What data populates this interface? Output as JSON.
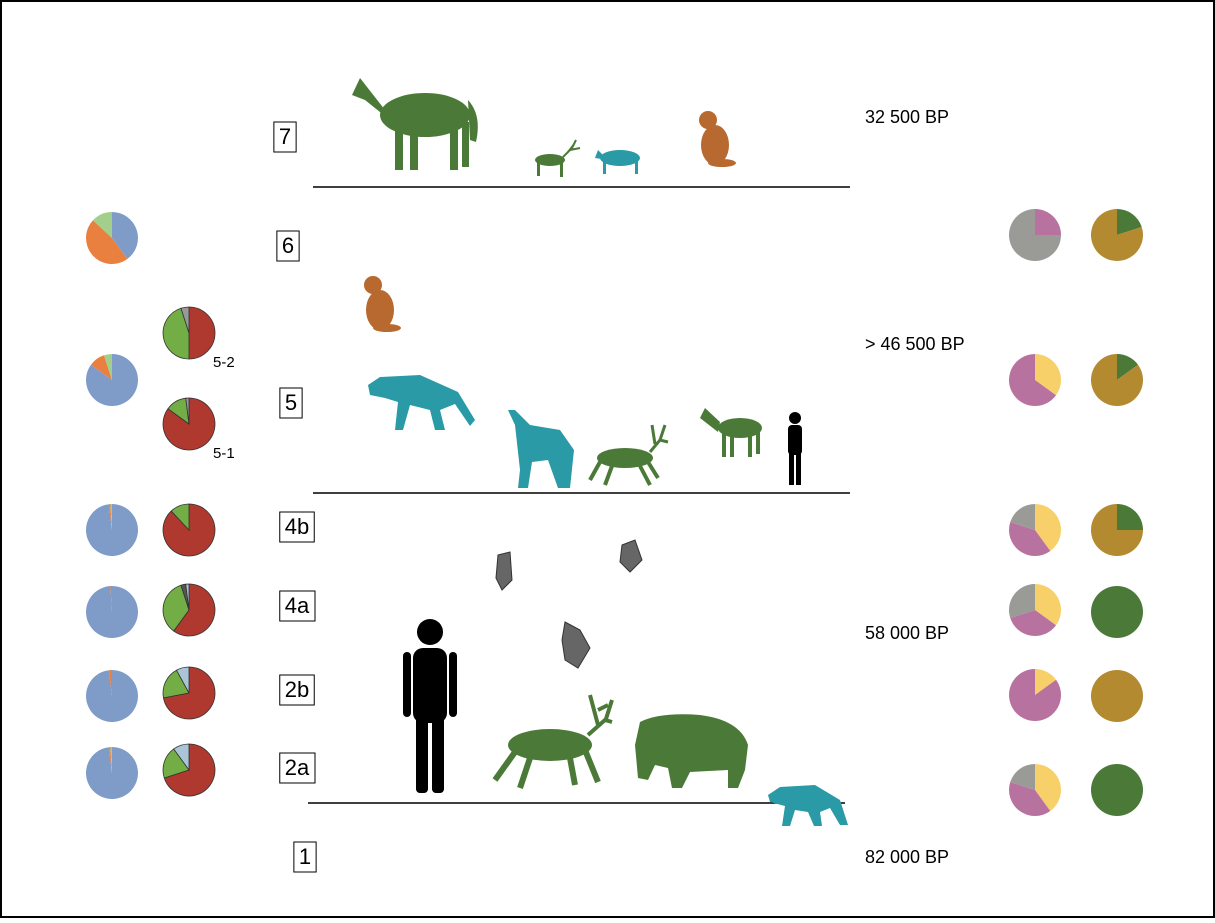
{
  "layers": [
    "7",
    "6",
    "5",
    "4b",
    "4a",
    "2b",
    "2a",
    "1"
  ],
  "dates": [
    "32 500 BP",
    "> 46 500 BP",
    "58 000 BP",
    "82 000 BP"
  ],
  "pies": [
    {
      "slices": [
        {
          "color": "#7f9cc8",
          "value": 40
        },
        {
          "color": "#e9803f",
          "value": 47
        },
        {
          "color": "#a3cf8c",
          "value": 13
        }
      ]
    },
    {
      "slices": [
        {
          "color": "#7f9cc8",
          "value": 85
        },
        {
          "color": "#e9803f",
          "value": 10
        },
        {
          "color": "#a3cf8c",
          "value": 5
        }
      ]
    },
    {
      "slices": [
        {
          "color": "#7f9cc8",
          "value": 98
        },
        {
          "color": "#e9803f",
          "value": 1
        },
        {
          "color": "#a3cf8c",
          "value": 1
        }
      ]
    },
    {
      "slices": [
        {
          "color": "#7f9cc8",
          "value": 99
        },
        {
          "color": "#e9803f",
          "value": 1
        }
      ]
    },
    {
      "slices": [
        {
          "color": "#7f9cc8",
          "value": 98
        },
        {
          "color": "#e9803f",
          "value": 2
        }
      ]
    },
    {
      "slices": [
        {
          "color": "#7f9cc8",
          "value": 98
        },
        {
          "color": "#e9803f",
          "value": 1
        },
        {
          "color": "#a3cf8c",
          "value": 1
        }
      ]
    },
    {
      "label": "5-2",
      "slices": [
        {
          "color": "#b0392f",
          "value": 50
        },
        {
          "color": "#72ae45",
          "value": 45
        },
        {
          "color": "#999999",
          "value": 5
        }
      ]
    },
    {
      "label": "5-1",
      "slices": [
        {
          "color": "#b0392f",
          "value": 85
        },
        {
          "color": "#72ae45",
          "value": 13
        },
        {
          "color": "#999999",
          "value": 2
        }
      ]
    },
    {
      "slices": [
        {
          "color": "#b0392f",
          "value": 88
        },
        {
          "color": "#72ae45",
          "value": 12
        }
      ]
    },
    {
      "slices": [
        {
          "color": "#b0392f",
          "value": 60
        },
        {
          "color": "#72ae45",
          "value": 35
        },
        {
          "color": "#555555",
          "value": 3
        },
        {
          "color": "#aac4d8",
          "value": 2
        }
      ]
    },
    {
      "slices": [
        {
          "color": "#b0392f",
          "value": 72
        },
        {
          "color": "#72ae45",
          "value": 20
        },
        {
          "color": "#aac4d8",
          "value": 8
        }
      ]
    },
    {
      "slices": [
        {
          "color": "#b0392f",
          "value": 70
        },
        {
          "color": "#72ae45",
          "value": 20
        },
        {
          "color": "#aac4d8",
          "value": 10
        }
      ]
    },
    {
      "slices": [
        {
          "color": "#b8729f",
          "value": 25
        },
        {
          "color": "#9a9a96",
          "value": 75
        }
      ]
    },
    {
      "slices": [
        {
          "color": "#f7d06a",
          "value": 35
        },
        {
          "color": "#b8729f",
          "value": 65
        }
      ]
    },
    {
      "slices": [
        {
          "color": "#f7d06a",
          "value": 40
        },
        {
          "color": "#b8729f",
          "value": 40
        },
        {
          "color": "#9a9a96",
          "value": 20
        }
      ]
    },
    {
      "slices": [
        {
          "color": "#f7d06a",
          "value": 35
        },
        {
          "color": "#b8729f",
          "value": 35
        },
        {
          "color": "#9a9a96",
          "value": 30
        }
      ]
    },
    {
      "slices": [
        {
          "color": "#f7d06a",
          "value": 15
        },
        {
          "color": "#b8729f",
          "value": 85
        }
      ]
    },
    {
      "slices": [
        {
          "color": "#f7d06a",
          "value": 40
        },
        {
          "color": "#b8729f",
          "value": 40
        },
        {
          "color": "#9a9a96",
          "value": 20
        }
      ]
    },
    {
      "slices": [
        {
          "color": "#4b7a38",
          "value": 20
        },
        {
          "color": "#b38a30",
          "value": 80
        }
      ]
    },
    {
      "slices": [
        {
          "color": "#4b7a38",
          "value": 15
        },
        {
          "color": "#b38a30",
          "value": 85
        }
      ]
    },
    {
      "slices": [
        {
          "color": "#4b7a38",
          "value": 25
        },
        {
          "color": "#b38a30",
          "value": 75
        }
      ]
    },
    {
      "slices": [
        {
          "color": "#4b7a38",
          "value": 100
        }
      ]
    },
    {
      "slices": [
        {
          "color": "#b38a30",
          "value": 100
        }
      ]
    },
    {
      "slices": [
        {
          "color": "#4b7a38",
          "value": 100
        }
      ]
    }
  ]
}
